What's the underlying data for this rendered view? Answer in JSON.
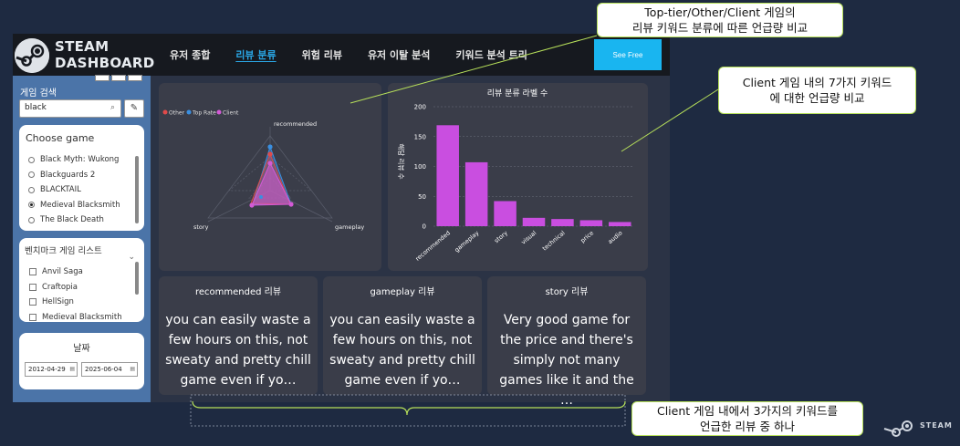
{
  "app": {
    "logo_line1": "STEAM",
    "logo_line2": "DASHBOARD",
    "nav": [
      "유저 종합",
      "리뷰 분류",
      "위험 리뷰",
      "유저 이탈 분석",
      "키워드 분석 트리"
    ],
    "active_nav_index": 1,
    "see_free": "See Free"
  },
  "sidebar": {
    "search_label": "게임 검색",
    "search_value": "black",
    "choose_title": "Choose game",
    "games": [
      "Black Myth: Wukong",
      "Blackguards 2",
      "BLACKTAIL",
      "Medieval Blacksmith",
      "The Black Death"
    ],
    "selected_game": "Medieval Blacksmith",
    "benchmark_title": "벤치마크 게임 리스트",
    "benchmark_games": [
      "Anvil Saga",
      "Craftopia",
      "HellSign",
      "Medieval Blacksmith"
    ],
    "date_title": "날짜",
    "date_start": "2012-04-29",
    "date_end": "2025-06-04"
  },
  "radar": {
    "legend": [
      "Other",
      "Top Rate",
      "Client"
    ],
    "legend_colors": [
      "#e04a4a",
      "#3a8fe0",
      "#d35ad6"
    ],
    "axes": [
      "recommended",
      "gameplay",
      "story"
    ]
  },
  "chart_data": {
    "type": "bar",
    "title": "리뷰 분류 라벨 수",
    "ylabel": "해당 리뷰 수",
    "xlabel": "",
    "categories": [
      "recommended",
      "gameplay",
      "story",
      "visual",
      "technical",
      "price",
      "audio"
    ],
    "values": [
      169,
      107,
      42,
      14,
      12,
      10,
      7
    ],
    "ylim": [
      0,
      200
    ],
    "yticks": [
      0,
      50,
      100,
      150,
      200
    ],
    "color": "#c94ee0",
    "grid": true
  },
  "reviews": [
    {
      "title": "recommended 리뷰",
      "text": "you can easily waste a few hours on this, not sweaty and pretty chill game even if yo…"
    },
    {
      "title": "gameplay 리뷰",
      "text": "you can easily waste a few hours on this, not sweaty and pretty chill game even if yo…"
    },
    {
      "title": "story 리뷰",
      "text": "Very good game for the price and there's simply not many games like it and the …"
    }
  ],
  "annotations": {
    "top_line1": "Top-tier/Other/Client 게임의",
    "top_line2": "리뷰 키워드 분류에 따른 언급량 비교",
    "right_line1": "Client 게임 내의 7가지 키워드",
    "right_line2": "에 대한 언급량 비교",
    "bottom_line1": "Client 게임 내에서 3가지의 키워드를",
    "bottom_line2": "언급한 리뷰 중 하나"
  },
  "footer_logo": "STEAM",
  "colors": {
    "background": "#1e2a41",
    "accent": "#19b5f0",
    "bar": "#c94ee0",
    "callout_border": "#b7e05a"
  }
}
